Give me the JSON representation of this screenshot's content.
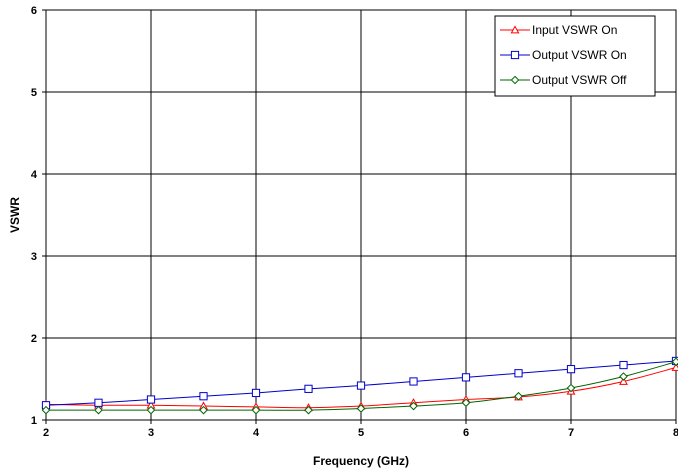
{
  "chart_data": {
    "type": "line",
    "title": "",
    "xlabel": "Frequency (GHz)",
    "ylabel": "VSWR",
    "xlim": [
      2,
      8
    ],
    "ylim": [
      1,
      6
    ],
    "xticks": [
      "2",
      "3",
      "4",
      "5",
      "6",
      "7",
      "8"
    ],
    "yticks": [
      "1",
      "2",
      "3",
      "4",
      "5",
      "6"
    ],
    "grid": true,
    "legend_position": "top-right",
    "x": [
      2,
      2.5,
      3,
      3.5,
      4,
      4.5,
      5,
      5.5,
      6,
      6.5,
      7,
      7.5,
      8
    ],
    "series": [
      {
        "name": "Input VSWR On",
        "color": "#ff0000",
        "marker": "triangle",
        "values": [
          1.19,
          1.18,
          1.18,
          1.17,
          1.16,
          1.15,
          1.17,
          1.21,
          1.25,
          1.28,
          1.35,
          1.47,
          1.64
        ]
      },
      {
        "name": "Output VSWR On",
        "color": "#0000cc",
        "marker": "square",
        "values": [
          1.18,
          1.21,
          1.25,
          1.29,
          1.33,
          1.38,
          1.42,
          1.47,
          1.52,
          1.57,
          1.62,
          1.67,
          1.72
        ]
      },
      {
        "name": "Output VSWR Off",
        "color": "#006400",
        "marker": "diamond",
        "values": [
          1.12,
          1.12,
          1.12,
          1.12,
          1.12,
          1.12,
          1.14,
          1.17,
          1.21,
          1.29,
          1.39,
          1.53,
          1.71
        ]
      }
    ]
  }
}
